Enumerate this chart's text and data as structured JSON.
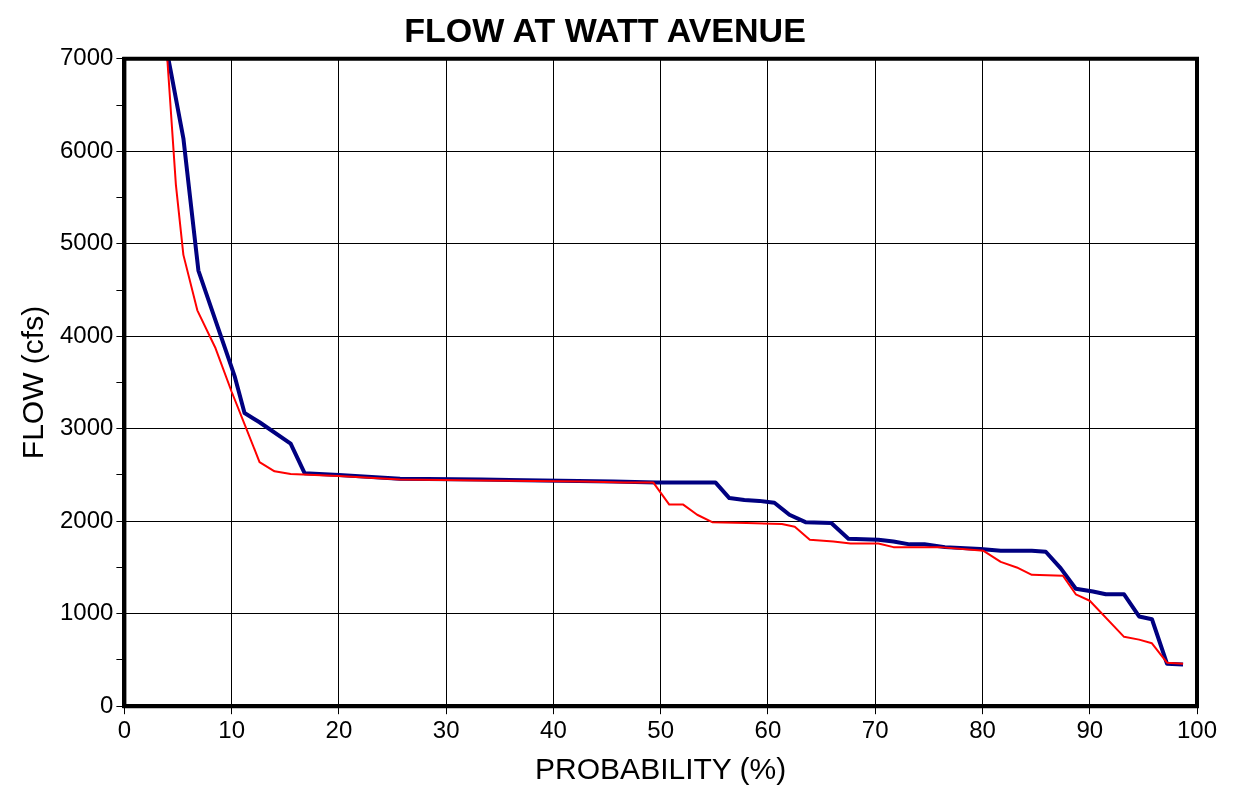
{
  "chart_data": {
    "type": "line",
    "title": "FLOW AT WATT AVENUE",
    "xlabel": "PROBABILITY (%)",
    "ylabel": "FLOW (cfs)",
    "xlim": [
      0,
      100
    ],
    "xticks": [
      0,
      10,
      20,
      30,
      40,
      50,
      60,
      70,
      80,
      90,
      100
    ],
    "ylim": [
      0,
      7000
    ],
    "yticks": [
      0,
      {
        "value": 500,
        "label": null
      },
      1000,
      {
        "value": 1500,
        "label": null
      },
      2000,
      {
        "value": 2500,
        "label": null
      },
      3000,
      {
        "value": 3500,
        "label": null
      },
      4000,
      {
        "value": 4500,
        "label": null
      },
      5000,
      {
        "value": 5500,
        "label": null
      },
      6000,
      {
        "value": 6500,
        "label": null
      },
      7000
    ],
    "grid": true,
    "legend": false,
    "marker": "none",
    "line_style": "solid",
    "series": [
      {
        "color": "#000080",
        "x": [
          4.1,
          4.3,
          5.5,
          6.9,
          10.3,
          11.2,
          12.6,
          15.5,
          16.8,
          20,
          25.7,
          33.3,
          39,
          45.6,
          49.6,
          55.1,
          56.4,
          57.8,
          59.2,
          60.6,
          62,
          63.5,
          65.9,
          67.5,
          70.3,
          71.7,
          73.2,
          74.6,
          76.5,
          79.8,
          81.7,
          84.6,
          85.9,
          87.3,
          88.7,
          90.3,
          91.5,
          93.2,
          94.6,
          95.8,
          97.2,
          98.7
        ],
        "values": [
          7000,
          6880,
          6140,
          4710,
          3560,
          3170,
          3070,
          2840,
          2520,
          2500,
          2460,
          2450,
          2440,
          2430,
          2420,
          2420,
          2250,
          2230,
          2220,
          2200,
          2070,
          1990,
          1980,
          1810,
          1800,
          1780,
          1750,
          1750,
          1720,
          1700,
          1680,
          1680,
          1670,
          1490,
          1270,
          1240,
          1210,
          1210,
          970,
          940,
          460,
          450
        ]
      },
      {
        "color": "#ff0000",
        "x": [
          4,
          4.8,
          5.5,
          6.8,
          8.5,
          10,
          11.2,
          12.6,
          14,
          15.5,
          20,
          25.7,
          33.3,
          42.8,
          46.6,
          49.3,
          50.8,
          52.1,
          53.4,
          54.8,
          58,
          61.3,
          62.5,
          63.9,
          66.1,
          67.7,
          70.3,
          71.7,
          76,
          80.1,
          81.7,
          83.2,
          84.6,
          87.5,
          88.7,
          90,
          93.2,
          94.6,
          95.8,
          97.2,
          98.7
        ],
        "values": [
          7000,
          5640,
          4880,
          4280,
          3870,
          3400,
          3050,
          2640,
          2540,
          2510,
          2490,
          2450,
          2440,
          2430,
          2420,
          2420,
          2180,
          2180,
          2070,
          1990,
          1980,
          1970,
          1940,
          1800,
          1780,
          1760,
          1760,
          1720,
          1720,
          1680,
          1560,
          1500,
          1420,
          1410,
          1210,
          1140,
          750,
          720,
          680,
          470,
          460
        ]
      }
    ]
  }
}
